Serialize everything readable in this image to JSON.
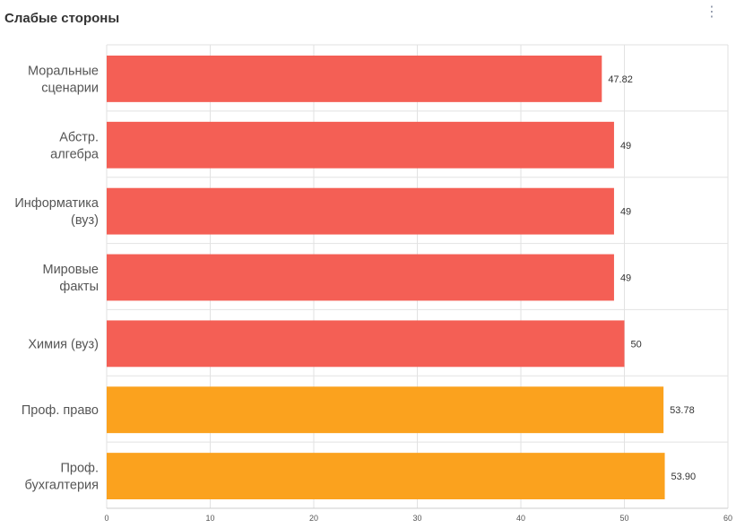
{
  "header": {
    "title": "Слабые стороны",
    "menu_icon": "vertical-ellipsis-icon"
  },
  "chart_data": {
    "type": "bar",
    "orientation": "horizontal",
    "title": "",
    "categories": [
      [
        "Моральные",
        "сценарии"
      ],
      [
        "Абстр.",
        "алгебра"
      ],
      [
        "Информатика",
        "(вуз)"
      ],
      [
        "Мировые",
        "факты"
      ],
      [
        "Химия (вуз)"
      ],
      [
        "Проф. право"
      ],
      [
        "Проф.",
        "бухгалтерия"
      ]
    ],
    "values": [
      47.82,
      49,
      49,
      49,
      50,
      53.78,
      53.9
    ],
    "value_labels": [
      "47.82",
      "49",
      "49",
      "49",
      "50",
      "53.78",
      "53.90"
    ],
    "colors": [
      "#F45F55",
      "#F45F55",
      "#F45F55",
      "#F45F55",
      "#F45F55",
      "#FBA21E",
      "#FBA21E"
    ],
    "xlim": [
      0,
      60
    ],
    "xticks": [
      "0",
      "10",
      "20",
      "30",
      "40",
      "50",
      "60"
    ],
    "grid": true,
    "xlabel": "",
    "ylabel": ""
  }
}
